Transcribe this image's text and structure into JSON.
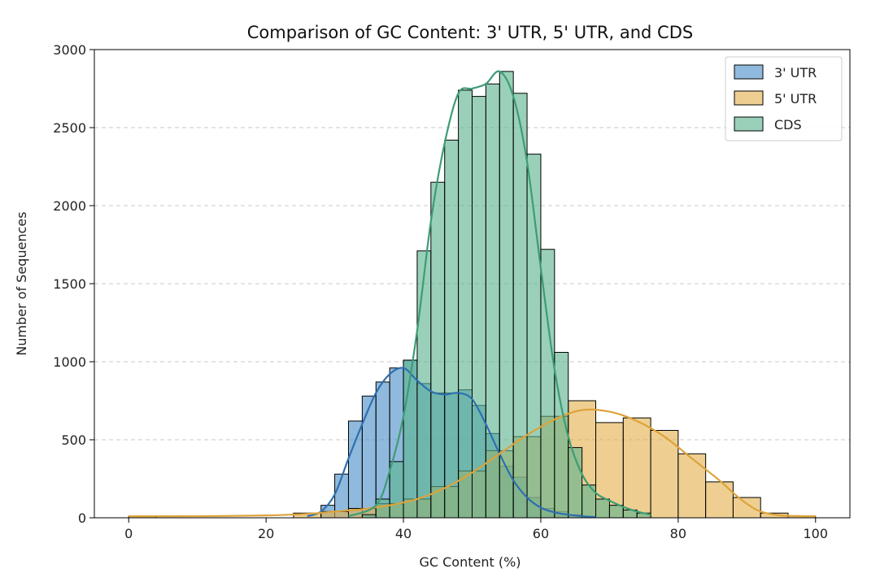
{
  "chart_data": {
    "type": "histogram",
    "title": "Comparison of GC Content: 3' UTR, 5' UTR, and CDS",
    "xlabel": "GC Content (%)",
    "ylabel": "Number of Sequences",
    "xlim": [
      -5,
      105
    ],
    "ylim": [
      0,
      3000
    ],
    "xticks": [
      "0",
      "20",
      "40",
      "60",
      "80",
      "100"
    ],
    "yticks": [
      "0",
      "500",
      "1000",
      "1500",
      "2000",
      "2500",
      "3000"
    ],
    "grid": "y dashed",
    "legend_position": "top-right",
    "series": [
      {
        "name": "3' UTR",
        "color": "#4a90c8",
        "line_color": "#2f6fb0",
        "bins": [
          [
            28,
            30,
            80
          ],
          [
            30,
            32,
            280
          ],
          [
            32,
            34,
            620
          ],
          [
            34,
            36,
            780
          ],
          [
            36,
            38,
            870
          ],
          [
            38,
            40,
            960
          ],
          [
            40,
            42,
            1010
          ],
          [
            42,
            44,
            860
          ],
          [
            44,
            46,
            800
          ],
          [
            46,
            48,
            800
          ],
          [
            48,
            50,
            820
          ],
          [
            50,
            52,
            720
          ],
          [
            52,
            54,
            540
          ],
          [
            54,
            56,
            330
          ],
          [
            56,
            58,
            260
          ],
          [
            58,
            60,
            130
          ],
          [
            60,
            62,
            60
          ],
          [
            62,
            64,
            40
          ],
          [
            64,
            66,
            20
          ]
        ],
        "kde": [
          [
            26,
            10
          ],
          [
            28,
            40
          ],
          [
            30,
            150
          ],
          [
            32,
            380
          ],
          [
            34,
            600
          ],
          [
            36,
            800
          ],
          [
            38,
            920
          ],
          [
            40,
            960
          ],
          [
            42,
            880
          ],
          [
            44,
            810
          ],
          [
            46,
            790
          ],
          [
            48,
            800
          ],
          [
            50,
            760
          ],
          [
            52,
            600
          ],
          [
            54,
            410
          ],
          [
            56,
            240
          ],
          [
            58,
            130
          ],
          [
            60,
            65
          ],
          [
            62,
            35
          ],
          [
            64,
            20
          ],
          [
            66,
            10
          ],
          [
            68,
            5
          ]
        ]
      },
      {
        "name": "5' UTR",
        "color": "#e3b24e",
        "line_color": "#dda33a",
        "bins": [
          [
            0,
            4,
            10
          ],
          [
            24,
            28,
            30
          ],
          [
            28,
            32,
            40
          ],
          [
            32,
            36,
            60
          ],
          [
            36,
            40,
            90
          ],
          [
            40,
            44,
            120
          ],
          [
            44,
            48,
            200
          ],
          [
            48,
            52,
            300
          ],
          [
            52,
            56,
            430
          ],
          [
            56,
            60,
            520
          ],
          [
            60,
            64,
            650
          ],
          [
            64,
            68,
            750
          ],
          [
            68,
            72,
            610
          ],
          [
            72,
            76,
            640
          ],
          [
            76,
            80,
            560
          ],
          [
            80,
            84,
            410
          ],
          [
            84,
            88,
            230
          ],
          [
            88,
            92,
            130
          ],
          [
            92,
            96,
            30
          ],
          [
            96,
            100,
            10
          ]
        ],
        "kde": [
          [
            0,
            10
          ],
          [
            10,
            10
          ],
          [
            20,
            15
          ],
          [
            26,
            25
          ],
          [
            30,
            40
          ],
          [
            34,
            55
          ],
          [
            38,
            80
          ],
          [
            42,
            120
          ],
          [
            46,
            190
          ],
          [
            50,
            290
          ],
          [
            54,
            410
          ],
          [
            58,
            530
          ],
          [
            62,
            630
          ],
          [
            66,
            690
          ],
          [
            70,
            680
          ],
          [
            74,
            620
          ],
          [
            78,
            520
          ],
          [
            82,
            380
          ],
          [
            86,
            240
          ],
          [
            88,
            160
          ],
          [
            90,
            90
          ],
          [
            92,
            40
          ],
          [
            95,
            15
          ],
          [
            100,
            10
          ]
        ]
      },
      {
        "name": "CDS",
        "color": "#5cb38f",
        "line_color": "#3d9c74",
        "bins": [
          [
            34,
            36,
            20
          ],
          [
            36,
            38,
            120
          ],
          [
            38,
            40,
            360
          ],
          [
            40,
            42,
            1010
          ],
          [
            42,
            44,
            1710
          ],
          [
            44,
            46,
            2150
          ],
          [
            46,
            48,
            2420
          ],
          [
            48,
            50,
            2740
          ],
          [
            50,
            52,
            2700
          ],
          [
            52,
            54,
            2780
          ],
          [
            54,
            56,
            2860
          ],
          [
            56,
            58,
            2720
          ],
          [
            58,
            60,
            2330
          ],
          [
            60,
            62,
            1720
          ],
          [
            62,
            64,
            1060
          ],
          [
            64,
            66,
            450
          ],
          [
            66,
            68,
            210
          ],
          [
            68,
            70,
            120
          ],
          [
            70,
            72,
            80
          ],
          [
            72,
            74,
            50
          ],
          [
            74,
            76,
            30
          ]
        ],
        "kde": [
          [
            32,
            10
          ],
          [
            36,
            80
          ],
          [
            38,
            300
          ],
          [
            40,
            650
          ],
          [
            42,
            1200
          ],
          [
            44,
            1900
          ],
          [
            46,
            2400
          ],
          [
            48,
            2720
          ],
          [
            50,
            2750
          ],
          [
            52,
            2780
          ],
          [
            54,
            2860
          ],
          [
            56,
            2700
          ],
          [
            58,
            2280
          ],
          [
            60,
            1600
          ],
          [
            62,
            950
          ],
          [
            64,
            520
          ],
          [
            66,
            280
          ],
          [
            68,
            160
          ],
          [
            70,
            110
          ],
          [
            72,
            70
          ],
          [
            74,
            40
          ],
          [
            76,
            20
          ]
        ]
      }
    ]
  }
}
